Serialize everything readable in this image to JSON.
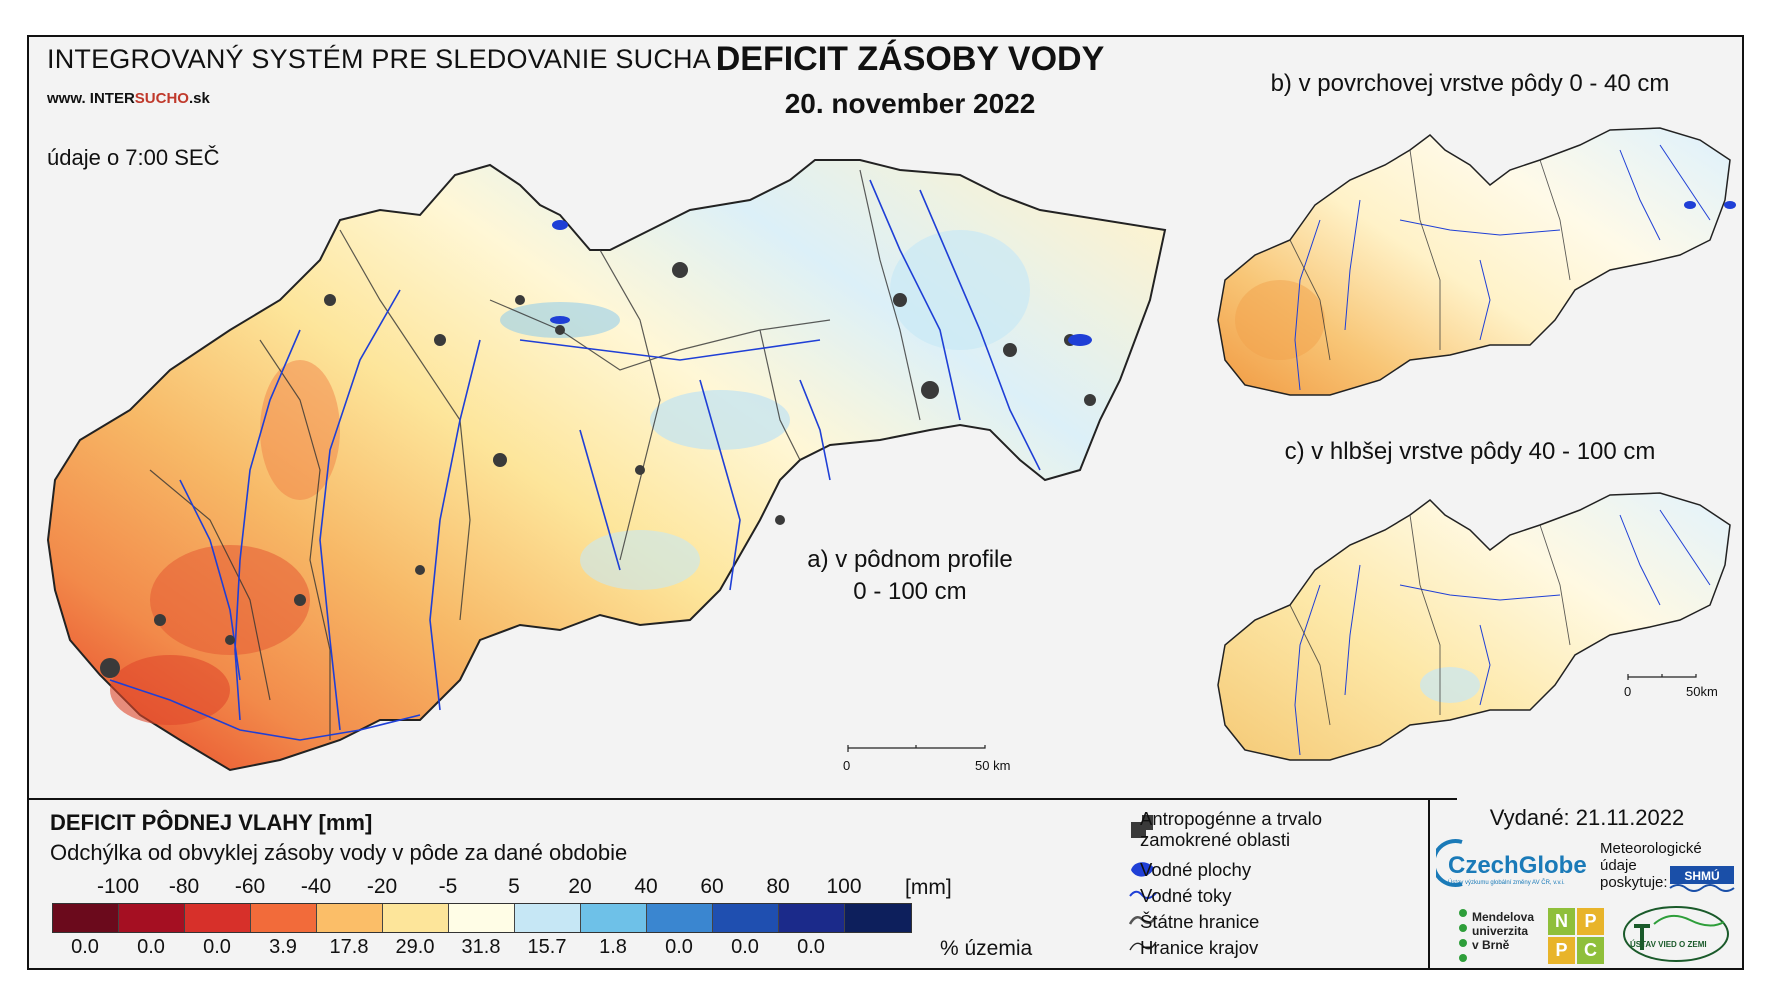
{
  "header": {
    "system_title": "INTEGROVANÝ SYSTÉM PRE SLEDOVANIE SUCHA",
    "url_prefix": "www.",
    "url_mid": "INTER",
    "url_red": "SUCHO",
    "url_suffix": ".sk",
    "observation_time": "údaje o 7:00 SEČ",
    "main_title": "DEFICIT ZÁSOBY VODY",
    "main_date": "20. november 2022"
  },
  "maps": {
    "a_label_line1": "a) v pôdnom profile",
    "a_label_line2": "0 - 100 cm",
    "b_label": "b) v povrchovej vrstve pôdy 0 - 40 cm",
    "c_label": "c) v hlbšej vrstve pôdy 40 - 100 cm",
    "scale_main_start": "0",
    "scale_main_end": "50 km",
    "scale_small_start": "0",
    "scale_small_end": "50km"
  },
  "legend": {
    "title": "DEFICIT PÔDNEJ VLAHY [mm]",
    "subtitle": "Odchýlka od obvyklej zásoby vody v pôde za dané obdobie",
    "unit": "[mm]",
    "ticks": [
      "-100",
      "-80",
      "-60",
      "-40",
      "-20",
      "-5",
      "5",
      "20",
      "40",
      "60",
      "80",
      "100"
    ],
    "classes": [
      {
        "color": "#6b0a1c",
        "percent": "0.0"
      },
      {
        "color": "#a50f22",
        "percent": "0.0"
      },
      {
        "color": "#d7302a",
        "percent": "0.0"
      },
      {
        "color": "#f26b3a",
        "percent": "3.9"
      },
      {
        "color": "#fbbe68",
        "percent": "17.8"
      },
      {
        "color": "#fde59a",
        "percent": "29.0"
      },
      {
        "color": "#fffde6",
        "percent": "31.8"
      },
      {
        "color": "#c6e7f5",
        "percent": "15.7"
      },
      {
        "color": "#6ec1e8",
        "percent": "1.8"
      },
      {
        "color": "#3a86d0",
        "percent": "0.0"
      },
      {
        "color": "#1f4fb0",
        "percent": "0.0"
      },
      {
        "color": "#1b2a8a",
        "percent": "0.0"
      },
      {
        "color": "#0d1f5c",
        "percent": ""
      }
    ],
    "percent_unit": "% územia",
    "symbols": {
      "urban": "Antropogénne a trvalo zamokrené oblasti",
      "urban_line1": "Antropogénne a trvalo",
      "urban_line2": "zamokrené oblasti",
      "water_bodies": "Vodné plochy",
      "streams": "Vodné toky",
      "state_border": "Štátne hranice",
      "region_border": "Hranice krajov"
    }
  },
  "footer": {
    "issued": "Vydané: 21.11.2022",
    "czechglobe": "CzechGlobe",
    "czechglobe_sub": "Ústav výzkumu globální změny AV ČR, v.v.i.",
    "met_line1": "Meteorologické",
    "met_line2": "údaje",
    "met_line3": "poskytuje:",
    "shmu": "SHMÚ",
    "mendel_line1": "Mendelova",
    "mendel_line2": "univerzita",
    "mendel_line3": "v Brně",
    "nppc": [
      "N",
      "P",
      "P",
      "C"
    ],
    "uvz": "ÚSTAV VIED O ZEMI"
  },
  "colors": {
    "frame_bg": "#f3f3f3",
    "river": "#1f3fd6",
    "urban": "#3a3a3a",
    "border": "#222222"
  }
}
